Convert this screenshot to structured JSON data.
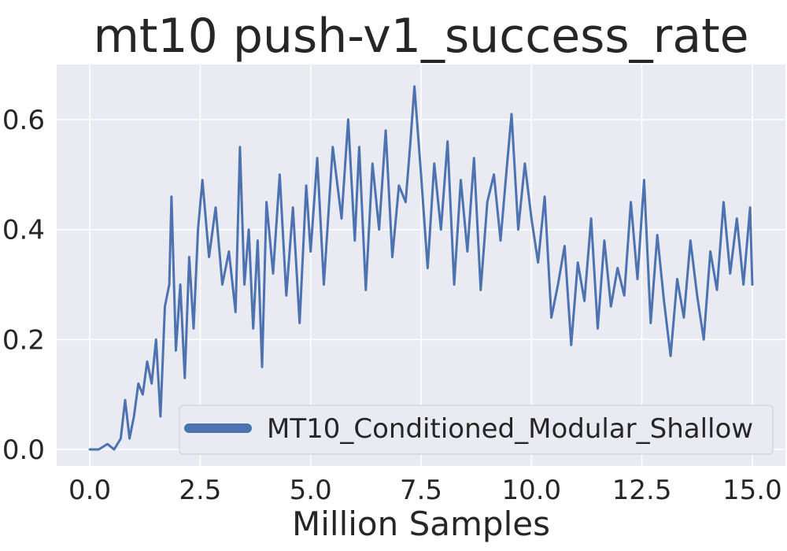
{
  "chart_data": {
    "type": "line",
    "title": "mt10 push-v1_success_rate",
    "xlabel": "Million Samples",
    "ylabel": "",
    "xlim": [
      -0.75,
      15.75
    ],
    "ylim": [
      -0.03,
      0.7
    ],
    "x_ticks": [
      0.0,
      2.5,
      5.0,
      7.5,
      10.0,
      12.5,
      15.0
    ],
    "x_tick_labels": [
      "0.0",
      "2.5",
      "5.0",
      "7.5",
      "10.0",
      "12.5",
      "15.0"
    ],
    "y_ticks": [
      0.0,
      0.2,
      0.4,
      0.6
    ],
    "y_tick_labels": [
      "0.0",
      "0.2",
      "0.4",
      "0.6"
    ],
    "grid": true,
    "legend_position": "lower-right",
    "series": [
      {
        "name": "MT10_Conditioned_Modular_Shallow",
        "color": "#4c72b0",
        "x": [
          0.0,
          0.2,
          0.4,
          0.55,
          0.7,
          0.8,
          0.9,
          1.0,
          1.1,
          1.2,
          1.3,
          1.4,
          1.5,
          1.6,
          1.7,
          1.8,
          1.85,
          1.95,
          2.05,
          2.15,
          2.25,
          2.35,
          2.45,
          2.55,
          2.7,
          2.85,
          3.0,
          3.15,
          3.3,
          3.4,
          3.5,
          3.6,
          3.7,
          3.8,
          3.9,
          4.0,
          4.15,
          4.3,
          4.45,
          4.6,
          4.75,
          4.9,
          5.0,
          5.15,
          5.3,
          5.5,
          5.7,
          5.85,
          6.0,
          6.1,
          6.25,
          6.4,
          6.55,
          6.7,
          6.85,
          7.0,
          7.15,
          7.25,
          7.35,
          7.5,
          7.65,
          7.8,
          7.95,
          8.1,
          8.25,
          8.4,
          8.55,
          8.7,
          8.85,
          9.0,
          9.15,
          9.3,
          9.45,
          9.55,
          9.7,
          9.85,
          10.0,
          10.15,
          10.3,
          10.45,
          10.6,
          10.75,
          10.9,
          11.05,
          11.2,
          11.35,
          11.5,
          11.65,
          11.8,
          11.95,
          12.1,
          12.25,
          12.4,
          12.55,
          12.7,
          12.85,
          13.0,
          13.15,
          13.3,
          13.45,
          13.6,
          13.75,
          13.9,
          14.05,
          14.2,
          14.35,
          14.5,
          14.65,
          14.8,
          14.95,
          15.0
        ],
        "y": [
          0.0,
          0.0,
          0.01,
          0.0,
          0.02,
          0.09,
          0.02,
          0.06,
          0.12,
          0.1,
          0.16,
          0.12,
          0.2,
          0.06,
          0.26,
          0.3,
          0.46,
          0.18,
          0.3,
          0.13,
          0.35,
          0.22,
          0.4,
          0.49,
          0.35,
          0.44,
          0.3,
          0.36,
          0.25,
          0.55,
          0.3,
          0.4,
          0.22,
          0.38,
          0.15,
          0.45,
          0.32,
          0.5,
          0.28,
          0.44,
          0.23,
          0.48,
          0.36,
          0.53,
          0.3,
          0.55,
          0.42,
          0.6,
          0.38,
          0.55,
          0.29,
          0.52,
          0.4,
          0.58,
          0.35,
          0.48,
          0.45,
          0.55,
          0.66,
          0.5,
          0.33,
          0.52,
          0.4,
          0.56,
          0.3,
          0.49,
          0.36,
          0.53,
          0.29,
          0.45,
          0.5,
          0.38,
          0.52,
          0.61,
          0.4,
          0.52,
          0.42,
          0.34,
          0.46,
          0.24,
          0.3,
          0.37,
          0.19,
          0.34,
          0.27,
          0.42,
          0.22,
          0.38,
          0.26,
          0.33,
          0.28,
          0.45,
          0.31,
          0.49,
          0.23,
          0.39,
          0.27,
          0.17,
          0.31,
          0.24,
          0.38,
          0.28,
          0.2,
          0.36,
          0.29,
          0.45,
          0.32,
          0.42,
          0.3,
          0.44,
          0.3
        ]
      }
    ]
  }
}
